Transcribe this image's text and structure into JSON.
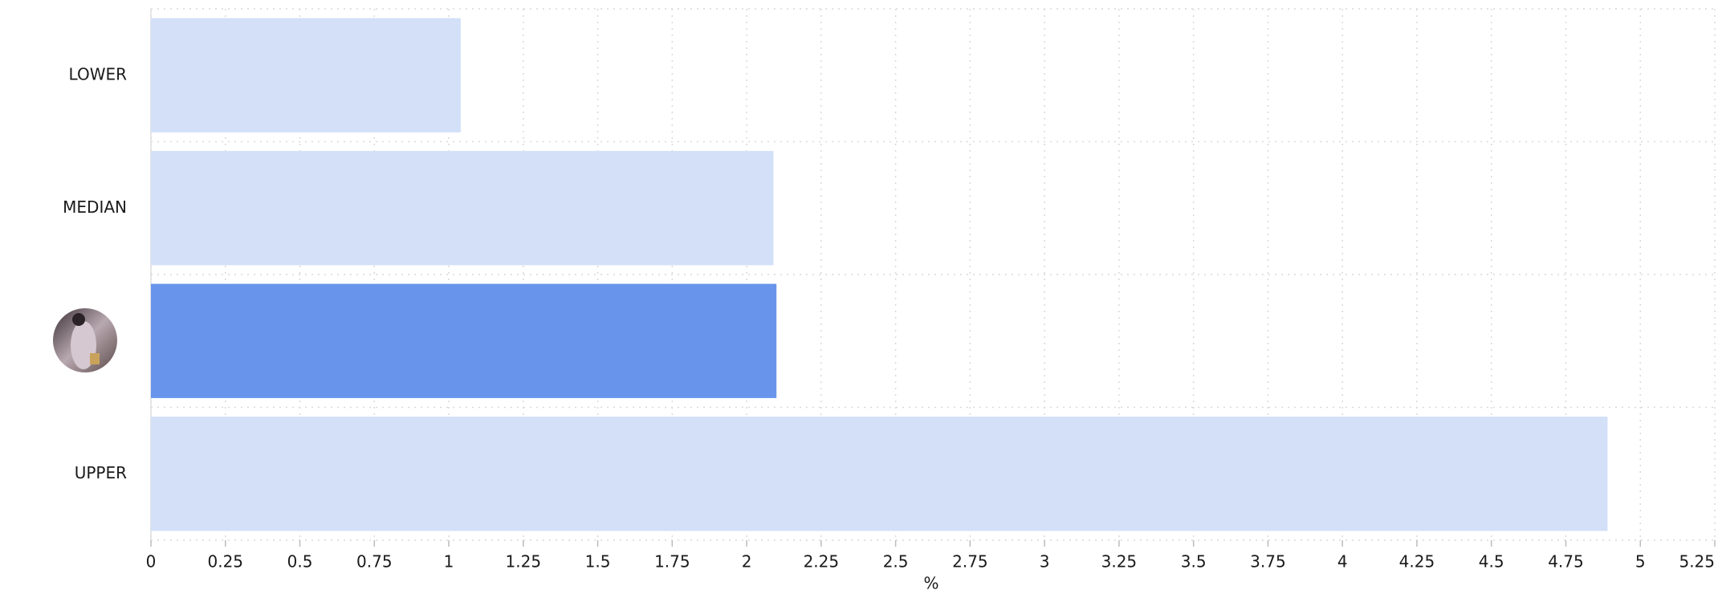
{
  "chart_data": {
    "type": "bar",
    "orientation": "horizontal",
    "categories": [
      "LOWER",
      "MEDIAN",
      null,
      "UPPER"
    ],
    "values": [
      1.04,
      2.09,
      2.1,
      4.89
    ],
    "colors": [
      "#d3e0f8",
      "#d3e0f8",
      "#6895eb",
      "#d3e0f8"
    ],
    "xlim": [
      0,
      5.25
    ],
    "xticks": [
      0,
      0.25,
      0.5,
      0.75,
      1,
      1.25,
      1.5,
      1.75,
      2,
      2.25,
      2.5,
      2.75,
      3,
      3.25,
      3.5,
      3.75,
      4,
      4.25,
      4.5,
      4.75,
      5,
      5.25
    ],
    "xlabel": "%",
    "grid": true
  }
}
